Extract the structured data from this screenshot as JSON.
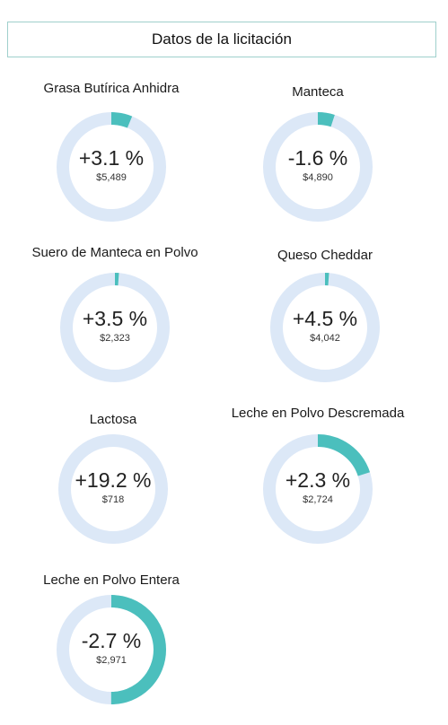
{
  "header": {
    "title": "Datos de la licitación"
  },
  "colors": {
    "track": "#dce8f7",
    "arc": "#4bbfbd",
    "border": "#9fd0cc"
  },
  "products": [
    {
      "name": "Grasa Butírica Anhidra",
      "change": "+3.1 %",
      "price": "$5,489",
      "arc_fraction": 0.062
    },
    {
      "name": "Manteca",
      "change": "-1.6 %",
      "price": "$4,890",
      "arc_fraction": 0.05
    },
    {
      "name": "Suero de Manteca en Polvo",
      "change": "+3.5 %",
      "price": "$2,323",
      "arc_fraction": 0.012
    },
    {
      "name": "Queso Cheddar",
      "change": "+4.5 %",
      "price": "$4,042",
      "arc_fraction": 0.012
    },
    {
      "name": "Lactosa",
      "change": "+19.2 %",
      "price": "$718",
      "arc_fraction": 0.0
    },
    {
      "name": "Leche en Polvo Descremada",
      "change": "+2.3 %",
      "price": "$2,724",
      "arc_fraction": 0.2
    },
    {
      "name": "Leche en Polvo Entera",
      "change": "-2.7 %",
      "price": "$2,971",
      "arc_fraction": 0.5
    }
  ]
}
